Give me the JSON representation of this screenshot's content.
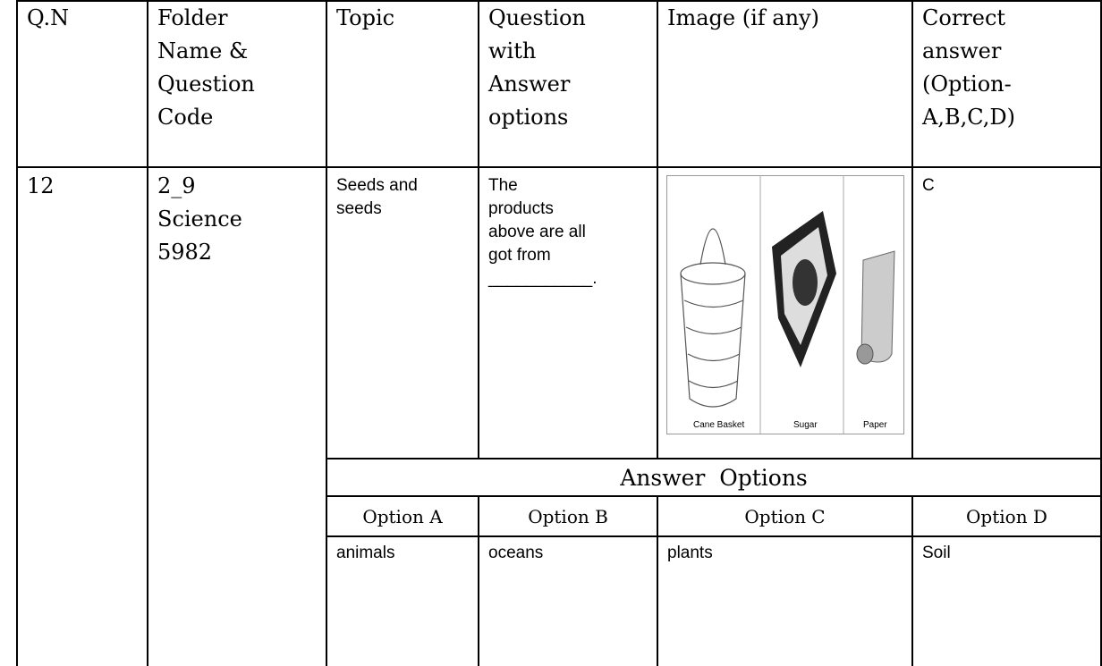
{
  "header": {
    "columns": [
      [
        "Q.N"
      ],
      [
        "Folder",
        "Name &",
        "Question",
        "Code"
      ],
      [
        "Topic"
      ],
      [
        "Question",
        "with",
        "Answer",
        "options"
      ],
      [
        "Image (if any)"
      ],
      [
        "Correct",
        "answer",
        "(Option-",
        "A,B,C,D)"
      ]
    ]
  },
  "row": {
    "qn": [
      "12"
    ],
    "folder": [
      "2_9",
      "Science",
      "5982"
    ],
    "topic": [
      "Seeds and",
      "seeds"
    ],
    "question": [
      " The",
      "products",
      "above are all",
      "got from",
      "___________."
    ],
    "image_labels": [
      "Cane Basket",
      "Sugar",
      "Paper"
    ],
    "correct": [
      "C"
    ]
  },
  "answer_options": {
    "title": "Answer  Options",
    "headers": [
      "Option A",
      "Option B",
      "Option C",
      "Option D"
    ],
    "values": [
      "animals",
      "oceans",
      "plants",
      "Soil"
    ]
  }
}
